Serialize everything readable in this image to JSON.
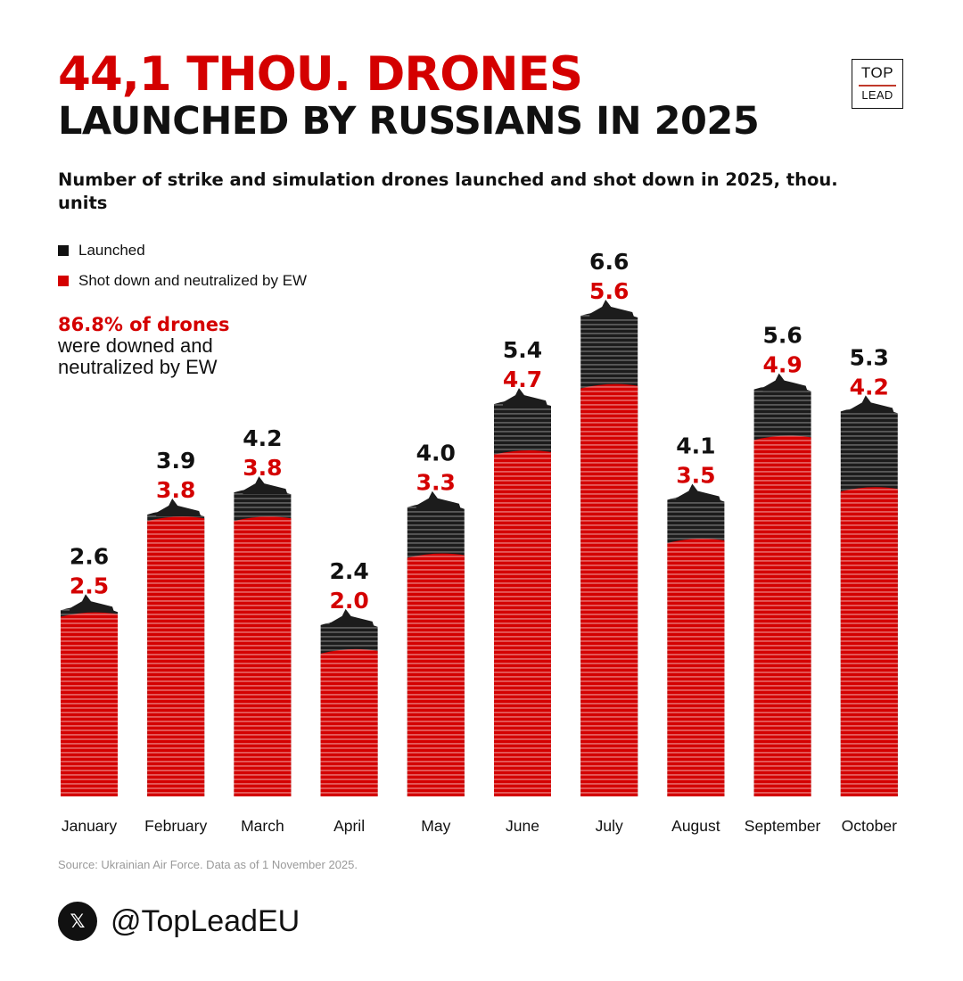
{
  "header": {
    "title_line1": "44,1 THOU. DRONES",
    "title_line2": "LAUNCHED BY RUSSIANS IN 2025",
    "subtitle": "Number of strike and simulation drones launched and shot down in 2025, thou. units",
    "logo_top": "TOP",
    "logo_bottom": "LEAD"
  },
  "legend": {
    "launched": "Launched",
    "shot_down": "Shot down and neutralized by EW"
  },
  "note": {
    "highlight": "86.8% of drones",
    "line2": "were downed and",
    "line3": "neutralized by EW"
  },
  "colors": {
    "launched": "#1c1c1c",
    "shot_down": "#d40000",
    "accent": "#d40000"
  },
  "chart_data": {
    "type": "bar",
    "title": "Number of strike and simulation drones launched and shot down in 2025, thou. units",
    "categories": [
      "January",
      "February",
      "March",
      "April",
      "May",
      "June",
      "July",
      "August",
      "September",
      "October"
    ],
    "series": [
      {
        "name": "Launched",
        "values": [
          2.6,
          3.9,
          4.2,
          2.4,
          4.0,
          5.4,
          6.6,
          4.1,
          5.6,
          5.3
        ]
      },
      {
        "name": "Shot down and neutralized by EW",
        "values": [
          2.5,
          3.8,
          3.8,
          2.0,
          3.3,
          4.7,
          5.6,
          3.5,
          4.9,
          4.2
        ]
      }
    ],
    "value_labels_launched": [
      "2.6",
      "3.9",
      "4.2",
      "2.4",
      "4.0",
      "5.4",
      "6.6",
      "4.1",
      "5.6",
      "5.3"
    ],
    "value_labels_shot_down": [
      "2.5",
      "3.8",
      "3.8",
      "2.0",
      "3.3",
      "4.7",
      "5.6",
      "3.5",
      "4.9",
      "4.2"
    ],
    "unit": "thou. units",
    "xlabel": "",
    "ylabel": "",
    "ylim": [
      0,
      6.6
    ],
    "grid": false,
    "legend_position": "top-left"
  },
  "footer": {
    "source": "Source: Ukrainian Air Force. Data as of 1 November 2025.",
    "handle": "@TopLeadEU",
    "social_icon": "x-logo-icon"
  }
}
